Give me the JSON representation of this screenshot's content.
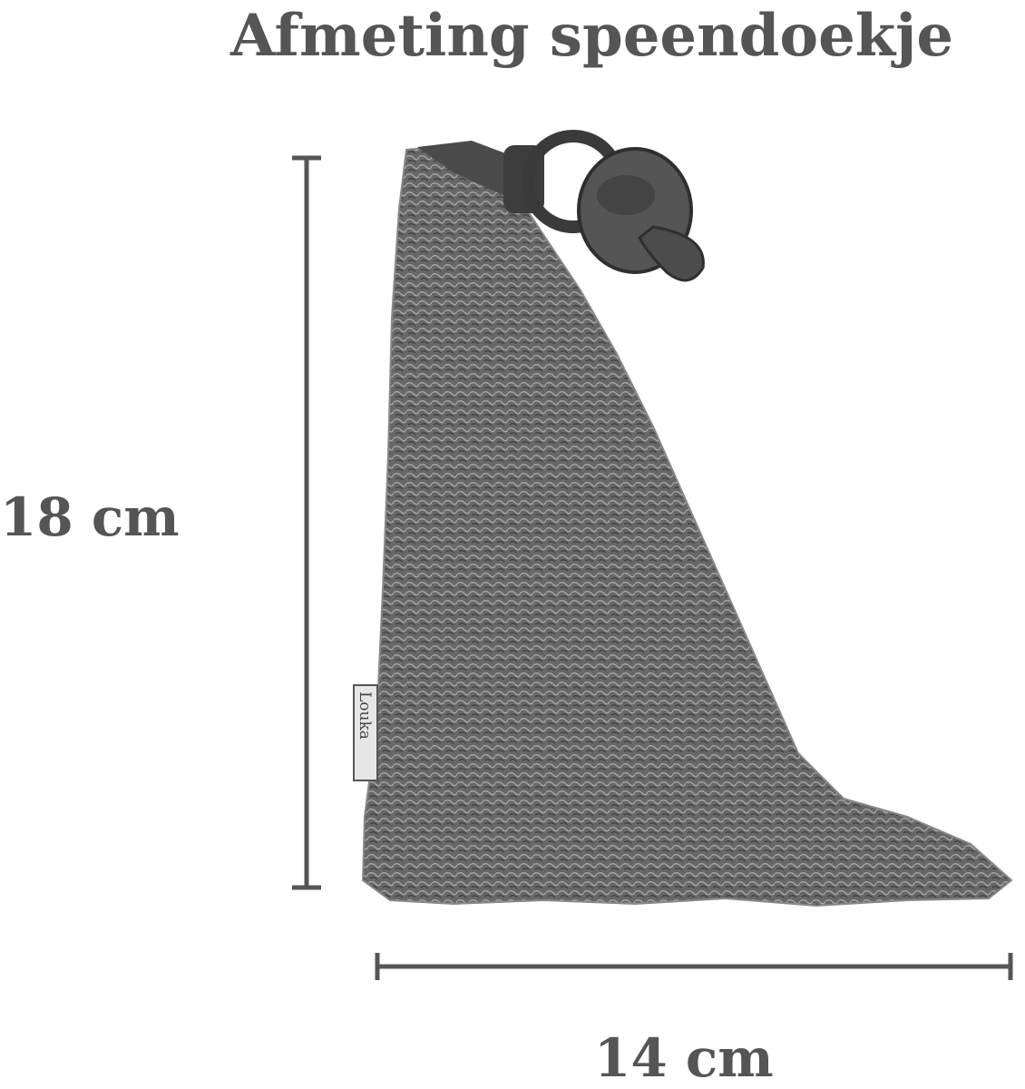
{
  "title": "Afmeting speendoekje",
  "height_label": "18 cm",
  "width_label": "14 cm",
  "brand_tag": "Louka",
  "colors": {
    "text": "#555555",
    "cloth": "#6a6a6a",
    "line": "#555555"
  }
}
